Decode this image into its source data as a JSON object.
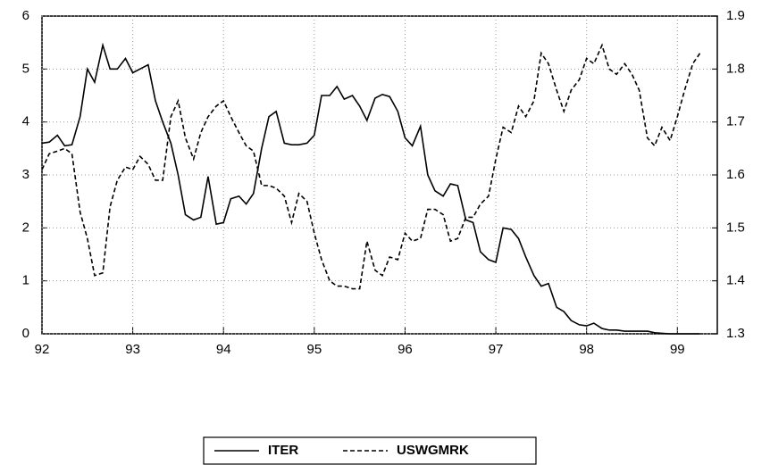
{
  "chart_data": {
    "type": "line",
    "x": [
      92,
      92.08,
      92.17,
      92.25,
      92.33,
      92.42,
      92.5,
      92.58,
      92.67,
      92.75,
      92.83,
      92.92,
      93,
      93.08,
      93.17,
      93.25,
      93.33,
      93.42,
      93.5,
      93.58,
      93.67,
      93.75,
      93.83,
      93.92,
      94,
      94.08,
      94.17,
      94.25,
      94.33,
      94.42,
      94.5,
      94.58,
      94.67,
      94.75,
      94.83,
      94.92,
      95,
      95.08,
      95.17,
      95.25,
      95.33,
      95.42,
      95.5,
      95.58,
      95.67,
      95.75,
      95.83,
      95.92,
      96,
      96.08,
      96.17,
      96.25,
      96.33,
      96.42,
      96.5,
      96.58,
      96.67,
      96.75,
      96.83,
      96.92,
      97,
      97.08,
      97.17,
      97.25,
      97.33,
      97.42,
      97.5,
      97.58,
      97.67,
      97.75,
      97.83,
      97.92,
      98,
      98.08,
      98.17,
      98.25,
      98.33,
      98.42,
      98.5,
      98.58,
      98.67,
      98.75,
      98.83,
      98.92,
      99,
      99.08,
      99.17,
      99.25
    ],
    "series": [
      {
        "name": "ITER",
        "color": "#000000",
        "values": [
          3.6,
          3.62,
          3.75,
          3.55,
          3.57,
          4.1,
          5.0,
          4.75,
          5.45,
          5.0,
          5.0,
          5.2,
          4.93,
          5.0,
          5.08,
          4.4,
          4.0,
          3.6,
          3.0,
          2.25,
          2.15,
          2.2,
          2.97,
          2.07,
          2.1,
          2.55,
          2.6,
          2.45,
          2.65,
          3.5,
          4.1,
          4.2,
          3.6,
          3.57,
          3.57,
          3.6,
          3.75,
          4.5,
          4.5,
          4.67,
          4.43,
          4.5,
          4.3,
          4.03,
          4.45,
          4.52,
          4.48,
          4.2,
          3.7,
          3.55,
          3.92,
          3.0,
          2.7,
          2.6,
          2.83,
          2.8,
          2.15,
          2.1,
          1.55,
          1.4,
          1.35,
          2.0,
          1.97,
          1.8,
          1.45,
          1.1,
          0.9,
          0.95,
          0.5,
          0.42,
          0.25,
          0.17,
          0.15,
          0.2,
          0.1,
          0.07,
          0.07,
          0.05,
          0.05,
          0.05,
          0.05,
          0.02,
          0.01,
          0,
          0,
          0,
          0,
          0
        ]
      },
      {
        "name": "USWGMRK",
        "color": "#000000",
        "axis": "y2",
        "dashed": true,
        "values": [
          1.61,
          1.64,
          1.645,
          1.65,
          1.64,
          1.53,
          1.48,
          1.41,
          1.415,
          1.54,
          1.59,
          1.615,
          1.61,
          1.635,
          1.62,
          1.59,
          1.59,
          1.71,
          1.74,
          1.67,
          1.63,
          1.68,
          1.71,
          1.73,
          1.74,
          1.71,
          1.68,
          1.655,
          1.645,
          1.58,
          1.58,
          1.575,
          1.56,
          1.51,
          1.565,
          1.55,
          1.49,
          1.44,
          1.4,
          1.39,
          1.39,
          1.385,
          1.385,
          1.475,
          1.42,
          1.41,
          1.445,
          1.44,
          1.49,
          1.475,
          1.48,
          1.535,
          1.535,
          1.525,
          1.475,
          1.48,
          1.52,
          1.52,
          1.545,
          1.56,
          1.63,
          1.69,
          1.68,
          1.73,
          1.71,
          1.74,
          1.83,
          1.81,
          1.76,
          1.72,
          1.76,
          1.78,
          1.82,
          1.81,
          1.845,
          1.8,
          1.79,
          1.81,
          1.79,
          1.76,
          1.67,
          1.655,
          1.69,
          1.665,
          1.71,
          1.76,
          1.81,
          1.83
        ]
      }
    ],
    "xlim": [
      92,
      99.44
    ],
    "xticks": [
      92,
      93,
      94,
      95,
      96,
      97,
      98,
      99
    ],
    "ylim": [
      0,
      6
    ],
    "yticks": [
      0,
      1,
      2,
      3,
      4,
      5,
      6
    ],
    "y2lim": [
      1.3,
      1.9
    ],
    "y2ticks": [
      1.3,
      1.4,
      1.5,
      1.6,
      1.7,
      1.8,
      1.9
    ],
    "grid": true,
    "legend": "bottom"
  }
}
